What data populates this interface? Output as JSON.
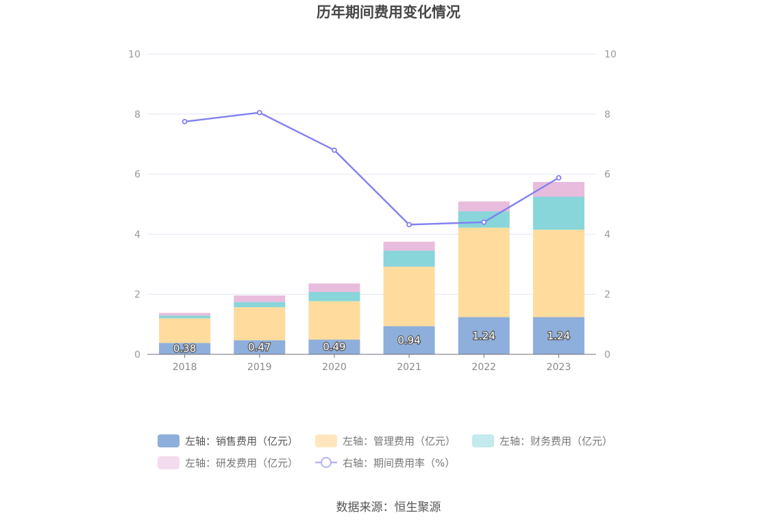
{
  "chart_data": {
    "type": "bar",
    "title": "历年期间费用变化情况",
    "categories": [
      "2018",
      "2019",
      "2020",
      "2021",
      "2022",
      "2023"
    ],
    "series": [
      {
        "name": "左轴：销售费用（亿元）",
        "type": "bar",
        "stack": true,
        "axis": "left",
        "color": "#8eaedb",
        "values": [
          0.38,
          0.47,
          0.49,
          0.94,
          1.24,
          1.24
        ],
        "labels_shown": true
      },
      {
        "name": "左轴：管理费用（亿元）",
        "type": "bar",
        "stack": true,
        "axis": "left",
        "color": "#ffdc9e",
        "values": [
          0.82,
          1.1,
          1.28,
          1.98,
          2.98,
          2.91
        ]
      },
      {
        "name": "左轴：财务费用（亿元）",
        "type": "bar",
        "stack": true,
        "axis": "left",
        "color": "#88d5da",
        "values": [
          0.09,
          0.17,
          0.31,
          0.53,
          0.54,
          1.1
        ]
      },
      {
        "name": "左轴：研发费用（亿元）",
        "type": "bar",
        "stack": true,
        "axis": "left",
        "color": "#e8bcdc",
        "values": [
          0.09,
          0.22,
          0.28,
          0.3,
          0.33,
          0.49
        ]
      },
      {
        "name": "右轴：期间费用率（%）",
        "type": "line",
        "axis": "right",
        "color": "#8080f0",
        "values": [
          7.75,
          8.05,
          6.8,
          4.32,
          4.4,
          5.88
        ]
      }
    ],
    "ylim_left": [
      0,
      10
    ],
    "ylim_right": [
      0,
      10
    ],
    "yticks_left": [
      "0",
      "2",
      "4",
      "6",
      "8",
      "10"
    ],
    "yticks_right": [
      "0",
      "2",
      "4",
      "6",
      "8",
      "10"
    ],
    "grid": true,
    "legend_position": "bottom"
  },
  "legend_items": [
    {
      "label": "左轴：销售费用（亿元）",
      "color": "#8eaedb",
      "kind": "box"
    },
    {
      "label": "左轴：管理费用（亿元）",
      "color": "#ffe6bf",
      "kind": "box"
    },
    {
      "label": "左轴：财务费用（亿元）",
      "color": "#c3eaec",
      "kind": "box"
    },
    {
      "label": "左轴：研发费用（亿元）",
      "color": "#f3dced",
      "kind": "box"
    },
    {
      "label": "右轴：期间费用率（%）",
      "color": "#b3b3f5",
      "kind": "line"
    }
  ],
  "source": "数据来源：恒生聚源"
}
